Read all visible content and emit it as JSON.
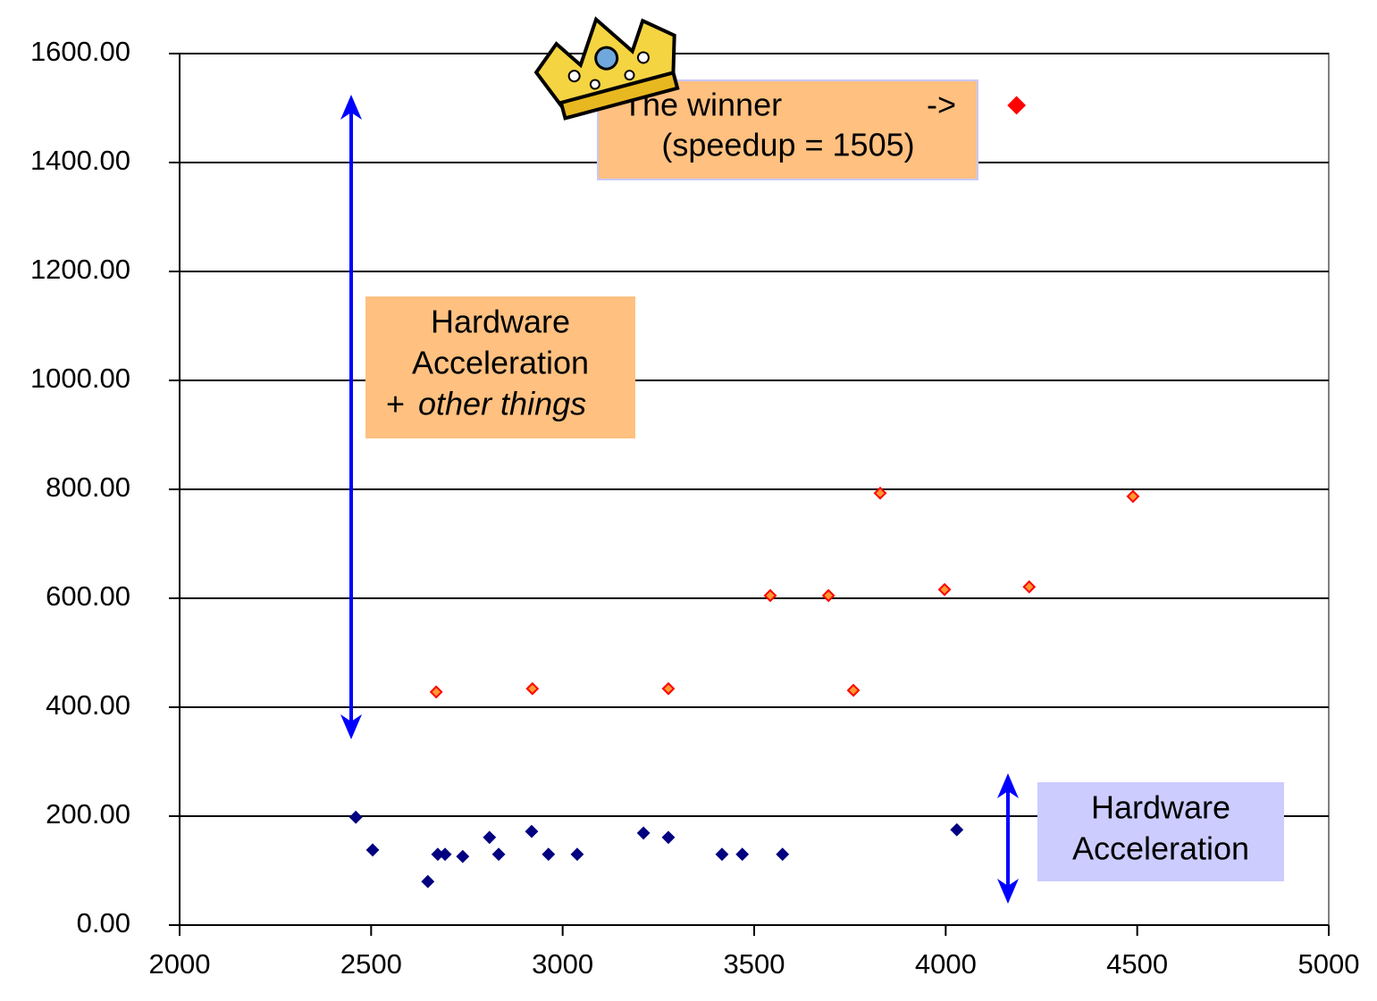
{
  "chart_data": {
    "type": "scatter",
    "series": [
      {
        "color": "#000080",
        "fill": "#000080",
        "marker_size": 6,
        "x": [
          2460,
          2504,
          2648,
          2674,
          2693,
          2739,
          2809,
          2833,
          2919,
          2963,
          3038,
          3211,
          3276,
          3416,
          3469,
          3574,
          4029
        ],
        "values": [
          198,
          138,
          80,
          130,
          130,
          126,
          161,
          130,
          172,
          130,
          130,
          169,
          161,
          130,
          130,
          130,
          175
        ]
      },
      {
        "color": "#ff0000",
        "fill": "#ff9933",
        "marker_size": 6,
        "x": [
          2670,
          2921,
          3276,
          3542,
          3694,
          3759,
          3829,
          3997,
          4218,
          4489
        ],
        "values": [
          428,
          434,
          434,
          605,
          605,
          431,
          793,
          616,
          621,
          787
        ]
      },
      {
        "color": "#ff0000",
        "fill": "#ff0000",
        "marker_size": 9,
        "x": [
          4185
        ],
        "values": [
          1505
        ]
      }
    ],
    "xlim": [
      2000,
      5000
    ],
    "xticks": [
      2000,
      2500,
      3000,
      3500,
      4000,
      4500,
      5000
    ],
    "ylim": [
      0,
      1600
    ],
    "yticks": [
      {
        "value": 0,
        "label": "0.00"
      },
      {
        "value": 200,
        "label": "200.00"
      },
      {
        "value": 400,
        "label": "400.00"
      },
      {
        "value": 600,
        "label": "600.00"
      },
      {
        "value": 800,
        "label": "800.00"
      },
      {
        "value": 1000,
        "label": "1000.00"
      },
      {
        "value": 1200,
        "label": "1200.00"
      },
      {
        "value": 1400,
        "label": "1400.00"
      },
      {
        "value": 1600,
        "label": "1600.00"
      }
    ],
    "grid": true,
    "annotations": [
      {
        "lines": [
          "The winner",
          "->",
          "(speedup = 1505)"
        ]
      },
      {
        "lines": [
          "Hardware",
          "Acceleration",
          "+",
          "other things"
        ]
      },
      {
        "lines": [
          "Hardware",
          "Acceleration"
        ]
      }
    ]
  }
}
